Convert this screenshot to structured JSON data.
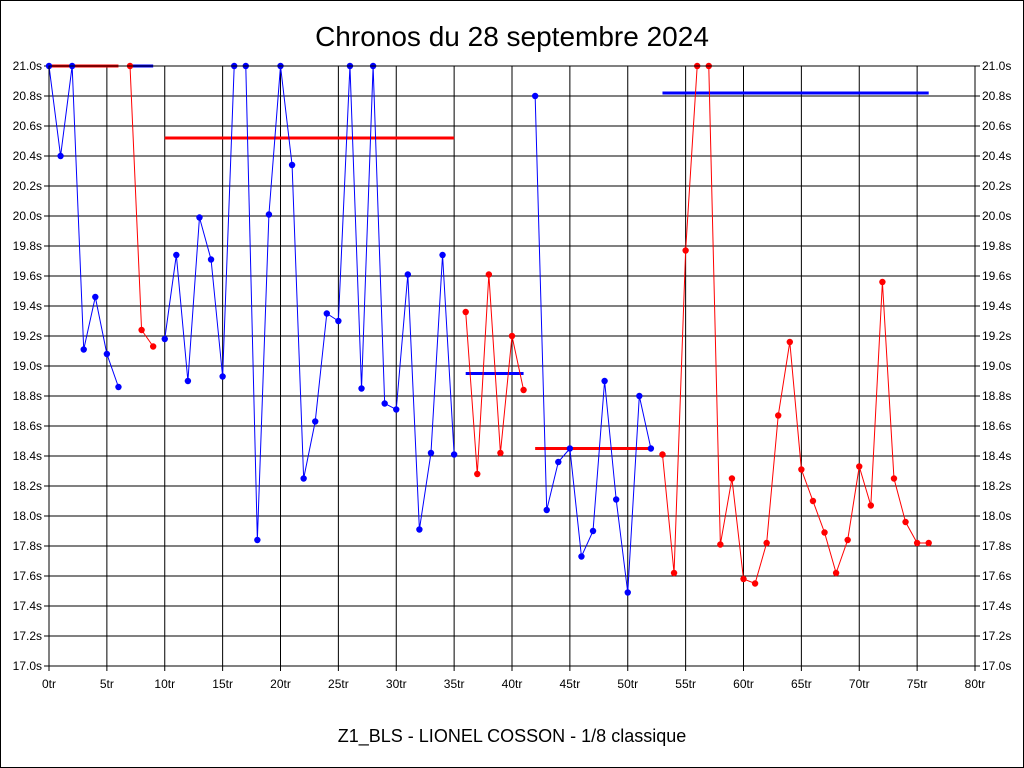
{
  "chart_data": {
    "type": "line",
    "title": "Chronos du 28 septembre 2024",
    "subtitle": "Z1_BLS - LIONEL COSSON - 1/8 classique",
    "xlim": [
      0,
      80
    ],
    "ylim": [
      17.0,
      21.0
    ],
    "x_ticks": [
      {
        "value": 0,
        "label": "0tr"
      },
      {
        "value": 5,
        "label": "5tr"
      },
      {
        "value": 10,
        "label": "10tr"
      },
      {
        "value": 15,
        "label": "15tr"
      },
      {
        "value": 20,
        "label": "20tr"
      },
      {
        "value": 25,
        "label": "25tr"
      },
      {
        "value": 30,
        "label": "30tr"
      },
      {
        "value": 35,
        "label": "35tr"
      },
      {
        "value": 40,
        "label": "40tr"
      },
      {
        "value": 45,
        "label": "45tr"
      },
      {
        "value": 50,
        "label": "50tr"
      },
      {
        "value": 55,
        "label": "55tr"
      },
      {
        "value": 60,
        "label": "60tr"
      },
      {
        "value": 65,
        "label": "65tr"
      },
      {
        "value": 70,
        "label": "70tr"
      },
      {
        "value": 75,
        "label": "75tr"
      },
      {
        "value": 80,
        "label": "80tr"
      }
    ],
    "y_ticks": [
      {
        "value": 21.0,
        "label": "21.0s"
      },
      {
        "value": 20.8,
        "label": "20.8s"
      },
      {
        "value": 20.6,
        "label": "20.6s"
      },
      {
        "value": 20.4,
        "label": "20.4s"
      },
      {
        "value": 20.2,
        "label": "20.2s"
      },
      {
        "value": 20.0,
        "label": "20.0s"
      },
      {
        "value": 19.8,
        "label": "19.8s"
      },
      {
        "value": 19.6,
        "label": "19.6s"
      },
      {
        "value": 19.4,
        "label": "19.4s"
      },
      {
        "value": 19.2,
        "label": "19.2s"
      },
      {
        "value": 19.0,
        "label": "19.0s"
      },
      {
        "value": 18.8,
        "label": "18.8s"
      },
      {
        "value": 18.6,
        "label": "18.6s"
      },
      {
        "value": 18.4,
        "label": "18.4s"
      },
      {
        "value": 18.2,
        "label": "18.2s"
      },
      {
        "value": 18.0,
        "label": "18.0s"
      },
      {
        "value": 17.8,
        "label": "17.8s"
      },
      {
        "value": 17.6,
        "label": "17.6s"
      },
      {
        "value": 17.4,
        "label": "17.4s"
      },
      {
        "value": 17.2,
        "label": "17.2s"
      },
      {
        "value": 17.0,
        "label": "17.0s"
      }
    ],
    "grid": true,
    "series": [
      {
        "color": "#0000ff",
        "x": [
          0,
          1,
          2,
          3,
          4,
          5,
          6
        ],
        "y": [
          21.0,
          20.4,
          21.0,
          19.11,
          19.46,
          19.08,
          18.86
        ]
      },
      {
        "color": "#ff0000",
        "x": [
          7,
          8,
          9
        ],
        "y": [
          21.0,
          19.24,
          19.13
        ]
      },
      {
        "color": "#0000ff",
        "x": [
          10,
          11,
          12,
          13,
          14,
          15,
          16,
          17,
          18,
          19,
          20,
          21,
          22,
          23,
          24,
          25,
          26,
          27,
          28,
          29,
          30,
          31,
          32,
          33,
          34,
          35
        ],
        "y": [
          19.18,
          19.74,
          18.9,
          19.99,
          19.71,
          18.93,
          21.0,
          21.0,
          17.84,
          20.01,
          21.0,
          20.34,
          18.25,
          18.63,
          19.35,
          19.3,
          21.0,
          18.85,
          21.0,
          18.75,
          18.71,
          19.61,
          17.91,
          18.42,
          19.74,
          18.41
        ]
      },
      {
        "color": "#ff0000",
        "x": [
          36,
          37,
          38,
          39,
          40,
          41
        ],
        "y": [
          19.36,
          18.28,
          19.61,
          18.42,
          19.2,
          18.84
        ]
      },
      {
        "color": "#0000ff",
        "x": [
          42,
          43,
          44,
          45,
          46,
          47,
          48,
          49,
          50,
          51,
          52
        ],
        "y": [
          20.8,
          18.04,
          18.36,
          18.45,
          17.73,
          17.9,
          18.9,
          18.11,
          17.49,
          18.8,
          18.45
        ]
      },
      {
        "color": "#ff0000",
        "x": [
          53,
          54,
          55,
          56,
          57,
          58,
          59,
          60,
          61,
          62,
          63,
          64,
          65,
          66,
          67,
          68,
          69,
          70,
          71,
          72,
          73,
          74,
          75,
          76
        ],
        "y": [
          18.41,
          17.62,
          19.77,
          21.0,
          21.0,
          17.81,
          18.25,
          17.58,
          17.55,
          17.82,
          18.67,
          19.16,
          18.31,
          18.1,
          17.89,
          17.62,
          17.84,
          18.33,
          18.07,
          19.56,
          18.25,
          17.96,
          17.82,
          17.82
        ]
      }
    ],
    "averages": [
      {
        "color": "#ff0000",
        "x_start": 0,
        "x_end": 6,
        "y": 21.0
      },
      {
        "color": "#0000ff",
        "x_start": 7,
        "x_end": 9,
        "y": 21.0
      },
      {
        "color": "#ff0000",
        "x_start": 10,
        "x_end": 35,
        "y": 20.52
      },
      {
        "color": "#0000ff",
        "x_start": 36,
        "x_end": 41,
        "y": 18.95
      },
      {
        "color": "#ff0000",
        "x_start": 42,
        "x_end": 52,
        "y": 18.45
      },
      {
        "color": "#0000ff",
        "x_start": 53,
        "x_end": 76,
        "y": 20.82
      }
    ]
  }
}
